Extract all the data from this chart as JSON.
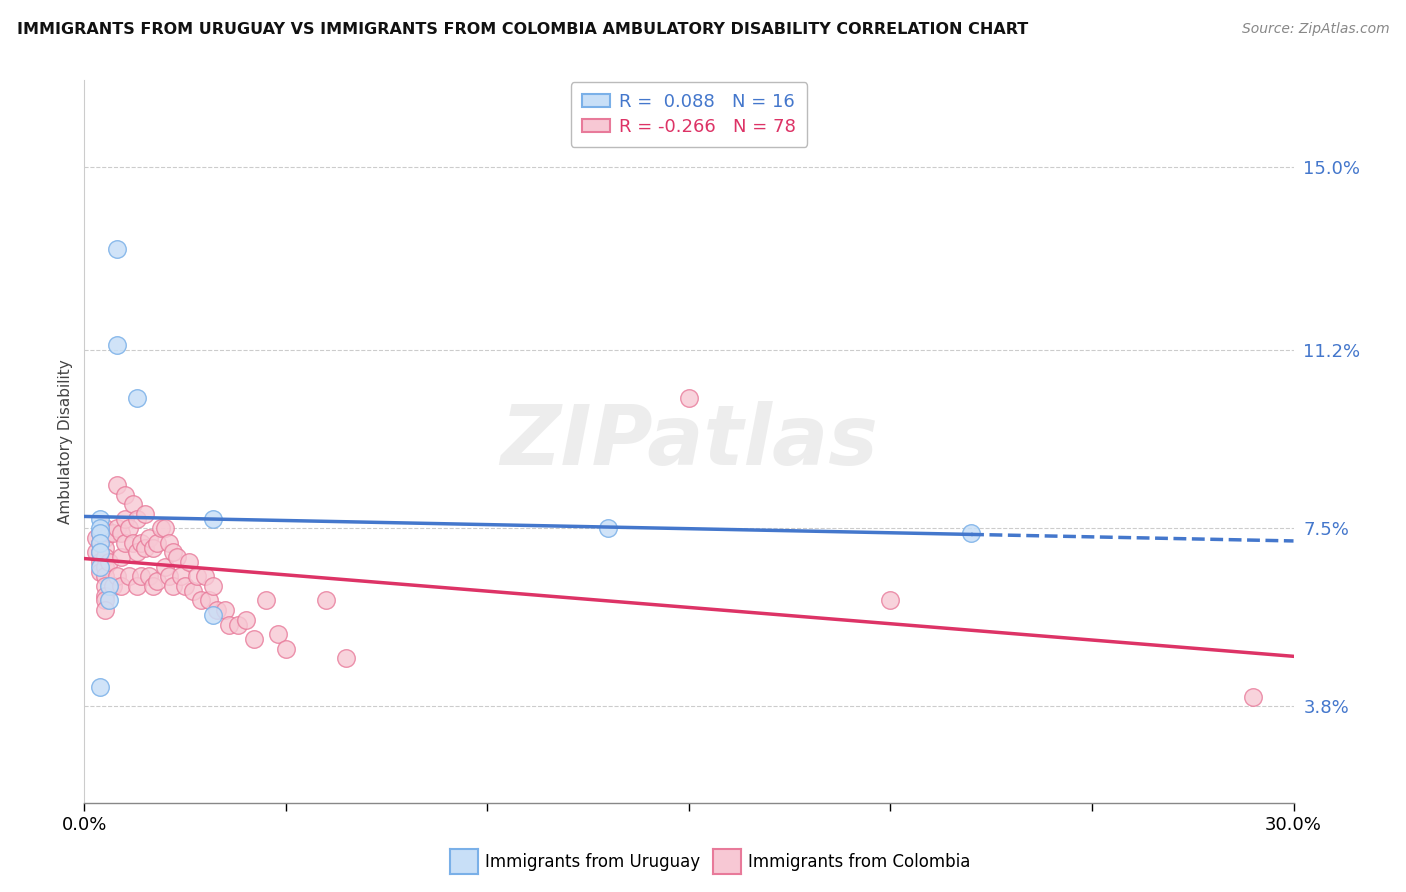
{
  "title": "IMMIGRANTS FROM URUGUAY VS IMMIGRANTS FROM COLOMBIA AMBULATORY DISABILITY CORRELATION CHART",
  "source": "Source: ZipAtlas.com",
  "ylabel": "Ambulatory Disability",
  "ytick_vals": [
    0.038,
    0.075,
    0.112,
    0.15
  ],
  "ytick_labels": [
    "3.8%",
    "7.5%",
    "11.2%",
    "15.0%"
  ],
  "xlim": [
    0.0,
    0.3
  ],
  "ylim": [
    0.018,
    0.168
  ],
  "r_uruguay": 0.088,
  "n_uruguay": 16,
  "r_colombia": -0.266,
  "n_colombia": 78,
  "color_uruguay_fill": "#c8dff7",
  "color_uruguay_edge": "#7ab0e8",
  "color_colombia_fill": "#f7c8d4",
  "color_colombia_edge": "#e87a9a",
  "line_color_uruguay": "#4477cc",
  "line_color_colombia": "#dd3366",
  "watermark": "ZIPatlas",
  "uruguay_x": [
    0.008,
    0.008,
    0.013,
    0.004,
    0.004,
    0.004,
    0.004,
    0.004,
    0.004,
    0.006,
    0.006,
    0.032,
    0.032,
    0.004,
    0.13,
    0.22
  ],
  "uruguay_y": [
    0.133,
    0.113,
    0.102,
    0.077,
    0.075,
    0.074,
    0.072,
    0.07,
    0.067,
    0.063,
    0.06,
    0.077,
    0.057,
    0.042,
    0.075,
    0.074
  ],
  "colombia_x": [
    0.003,
    0.003,
    0.004,
    0.004,
    0.004,
    0.004,
    0.004,
    0.005,
    0.005,
    0.005,
    0.005,
    0.005,
    0.005,
    0.005,
    0.005,
    0.005,
    0.005,
    0.006,
    0.006,
    0.007,
    0.007,
    0.008,
    0.008,
    0.008,
    0.009,
    0.009,
    0.009,
    0.01,
    0.01,
    0.01,
    0.011,
    0.011,
    0.012,
    0.012,
    0.013,
    0.013,
    0.013,
    0.014,
    0.014,
    0.015,
    0.015,
    0.016,
    0.016,
    0.017,
    0.017,
    0.018,
    0.018,
    0.019,
    0.02,
    0.02,
    0.021,
    0.021,
    0.022,
    0.022,
    0.023,
    0.024,
    0.025,
    0.026,
    0.027,
    0.028,
    0.029,
    0.03,
    0.031,
    0.032,
    0.033,
    0.035,
    0.036,
    0.038,
    0.04,
    0.042,
    0.045,
    0.048,
    0.05,
    0.06,
    0.065,
    0.15,
    0.2,
    0.29
  ],
  "colombia_y": [
    0.073,
    0.07,
    0.074,
    0.072,
    0.07,
    0.068,
    0.066,
    0.075,
    0.073,
    0.071,
    0.069,
    0.067,
    0.065,
    0.063,
    0.061,
    0.06,
    0.058,
    0.074,
    0.068,
    0.074,
    0.063,
    0.084,
    0.075,
    0.065,
    0.074,
    0.069,
    0.063,
    0.082,
    0.077,
    0.072,
    0.075,
    0.065,
    0.08,
    0.072,
    0.077,
    0.07,
    0.063,
    0.072,
    0.065,
    0.078,
    0.071,
    0.073,
    0.065,
    0.071,
    0.063,
    0.072,
    0.064,
    0.075,
    0.075,
    0.067,
    0.072,
    0.065,
    0.07,
    0.063,
    0.069,
    0.065,
    0.063,
    0.068,
    0.062,
    0.065,
    0.06,
    0.065,
    0.06,
    0.063,
    0.058,
    0.058,
    0.055,
    0.055,
    0.056,
    0.052,
    0.06,
    0.053,
    0.05,
    0.06,
    0.048,
    0.102,
    0.06,
    0.04
  ]
}
